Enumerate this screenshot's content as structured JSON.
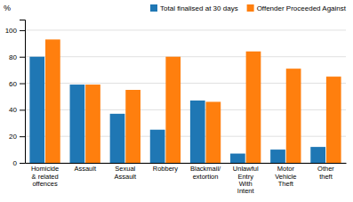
{
  "chart_data": {
    "type": "bar",
    "categories": [
      "Homicide\n& related\noffences",
      "Assault",
      "Sexual\nAssault",
      "Robbery",
      "Blackmail/\nextortion",
      "Unlawful\nEntry\nWith\nIntent",
      "Motor\nVehicle\nTheft",
      "Other\ntheft"
    ],
    "series": [
      {
        "name": "Total finalised at 30 days",
        "values": [
          80,
          59,
          37,
          25,
          47,
          7,
          10,
          12
        ]
      },
      {
        "name": "Offender Proceeded Against",
        "values": [
          93,
          59,
          55,
          80,
          46,
          84,
          71,
          65
        ]
      }
    ],
    "ylabel": "%",
    "ylim": [
      0,
      108
    ],
    "yticks": [
      0,
      20,
      40,
      60,
      80,
      100
    ],
    "grid": true,
    "legend": "top-right"
  }
}
